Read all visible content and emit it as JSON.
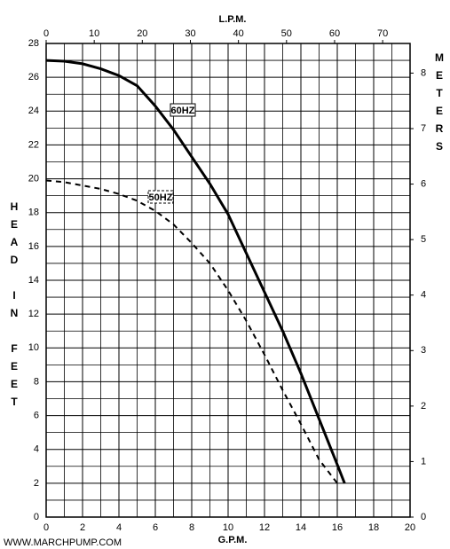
{
  "chart_data": {
    "type": "line",
    "xlabel": "G.P.M.",
    "x2label": "L.P.M.",
    "ylabel": "HEAD IN FEET",
    "y2label": "METERS",
    "source": "WWW.MARCHPUMP.COM",
    "xlim": [
      0,
      20
    ],
    "xticks": [
      0,
      2,
      4,
      6,
      8,
      10,
      12,
      14,
      16,
      18,
      20
    ],
    "x_minor_ticks": [
      1,
      3,
      5,
      7,
      9,
      11,
      13,
      15,
      17,
      19
    ],
    "x2lim": [
      0,
      75.7
    ],
    "x2ticks": [
      0,
      10,
      20,
      30,
      40,
      50,
      60,
      70
    ],
    "ylim": [
      0,
      28
    ],
    "yticks": [
      0,
      2,
      4,
      6,
      8,
      10,
      12,
      14,
      16,
      18,
      20,
      22,
      24,
      26,
      28
    ],
    "y_minor_ticks": [
      1,
      3,
      5,
      7,
      9,
      11,
      13,
      15,
      17,
      19,
      21,
      23,
      25,
      27
    ],
    "y2lim": [
      0,
      8.534
    ],
    "y2ticks": [
      0,
      1,
      2,
      3,
      4,
      5,
      6,
      7,
      8
    ],
    "grid": true,
    "series": [
      {
        "name": "60HZ",
        "color": "#000000",
        "dash": "solid",
        "x": [
          0,
          1,
          2,
          3,
          4,
          5,
          6,
          7,
          8,
          9,
          10,
          11,
          12,
          13,
          14,
          15,
          16,
          16.4
        ],
        "values": [
          27,
          26.95,
          26.8,
          26.5,
          26.1,
          25.5,
          24.3,
          22.9,
          21.3,
          19.7,
          17.9,
          15.6,
          13.3,
          11,
          8.5,
          5.8,
          3.1,
          2
        ]
      },
      {
        "name": "50HZ",
        "color": "#000000",
        "dash": "dashed",
        "x": [
          0,
          1,
          2,
          3,
          4,
          5,
          6,
          7,
          8,
          9,
          10,
          11,
          12,
          13,
          14,
          15,
          16
        ],
        "values": [
          19.9,
          19.8,
          19.6,
          19.4,
          19.1,
          18.7,
          18.1,
          17.3,
          16.2,
          15,
          13.4,
          11.6,
          9.6,
          7.5,
          5.5,
          3.4,
          2
        ]
      }
    ]
  }
}
